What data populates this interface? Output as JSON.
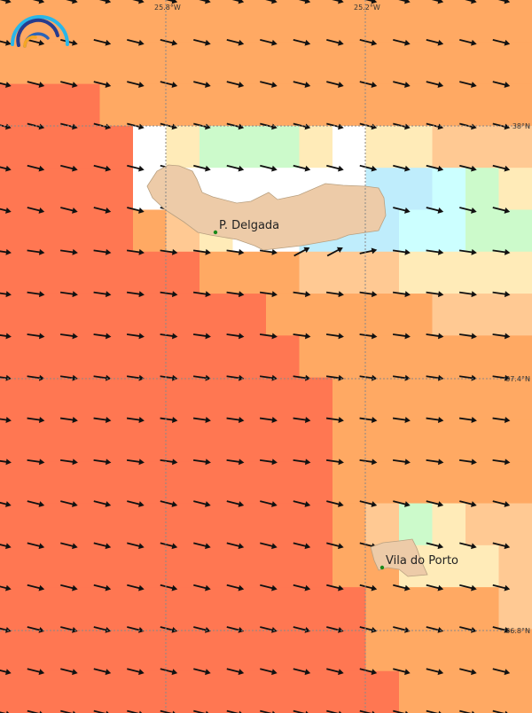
{
  "map": {
    "palette": {
      "R": "#FF7752",
      "O": "#FFA963",
      "L": "#FFC993",
      "Y": "#FFEBB8",
      "G": "#CCFACB",
      "B": "#BFEDFC",
      "C": "#CCFFFF",
      "W": "#FFFFFF"
    },
    "field_grid": [
      "OOOOOOOOOOOOOOOO",
      "OOOOOOOOOOOOOOOO",
      "RRROOOOOOOOOOOOO",
      "RRRRWYGGGYWYYLLL",
      "RRRRWWWWWWWBBCGY",
      "RRRROLYWWBBBCCGG",
      "RRRRRROOOLLLYYYY",
      "RRRRRRRROOOOOLLL",
      "RRRRRRRRROOOOOOO",
      "RRRRRRRRRROOOOOO",
      "RRRRRRRRRROOOOOO",
      "RRRRRRRRRROOOOOO",
      "RRRRRRRRRROLGYLL",
      "RRRRRRRRRROOYYYL",
      "RRRRRRRRRRROOOOL",
      "RRRRRRRRRRROOOOO",
      "RRRRRRRRRRRROOOO"
    ],
    "vector_icon": "wind-arrow-icon",
    "land_color": "#EDCBA8",
    "place_marker_color": "#1A8A1A",
    "longitude_labels": [
      "25.8°W",
      "25.2°W"
    ],
    "latitude_labels": [
      "38°N",
      "37.4°N",
      "36.8°N"
    ],
    "places": [
      {
        "name": "P. Delgada"
      },
      {
        "name": "Vila do Porto"
      }
    ],
    "logo_icon": "rainbow-arc-logo"
  }
}
